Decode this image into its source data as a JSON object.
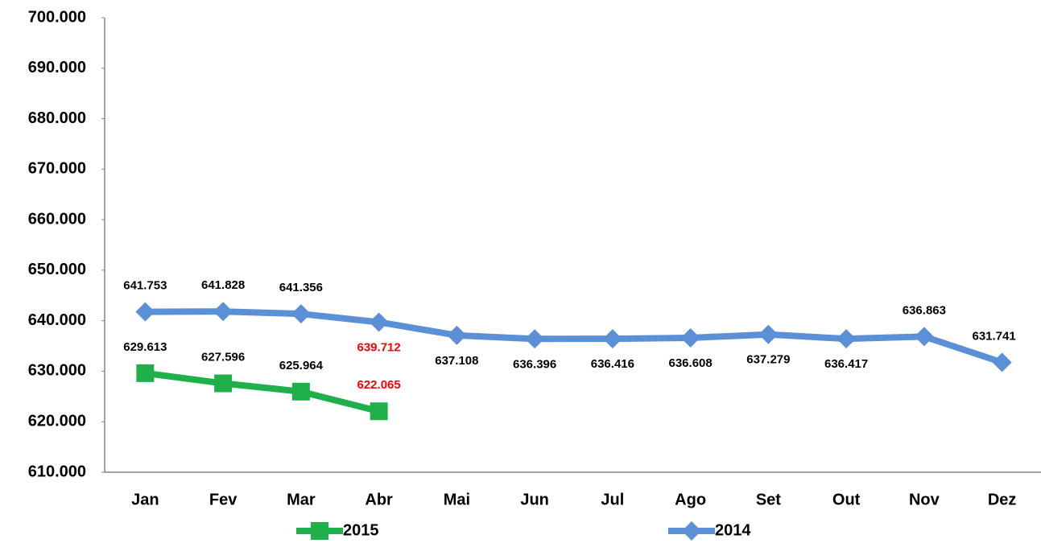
{
  "chart_data": {
    "type": "line",
    "categories": [
      "Jan",
      "Fev",
      "Mar",
      "Abr",
      "Mai",
      "Jun",
      "Jul",
      "Ago",
      "Set",
      "Out",
      "Nov",
      "Dez"
    ],
    "series": [
      {
        "name": "2015",
        "color": "#1faf4b",
        "marker": "square",
        "values": [
          629613,
          627596,
          625964,
          622065,
          null,
          null,
          null,
          null,
          null,
          null,
          null,
          null
        ],
        "value_labels": [
          "629.613",
          "627.596",
          "625.964",
          "622.065",
          null,
          null,
          null,
          null,
          null,
          null,
          null,
          null
        ],
        "value_label_colors": [
          "#000000",
          "#000000",
          "#000000",
          "#ff0000",
          null,
          null,
          null,
          null,
          null,
          null,
          null,
          null
        ]
      },
      {
        "name": "2014",
        "color": "#5b8fd6",
        "marker": "diamond",
        "values": [
          641753,
          641828,
          641356,
          639712,
          637108,
          636396,
          636416,
          636608,
          637279,
          636417,
          636863,
          631741
        ],
        "value_labels": [
          "641.753",
          "641.828",
          "641.356",
          "639.712",
          "637.108",
          "636.396",
          "636.416",
          "636.608",
          "637.279",
          "636.417",
          "636.863",
          "631.741"
        ],
        "value_label_colors": [
          "#000000",
          "#000000",
          "#000000",
          "#ff0000",
          "#000000",
          "#000000",
          "#000000",
          "#000000",
          "#000000",
          "#000000",
          "#000000",
          "#000000"
        ]
      }
    ],
    "ylim": [
      610000,
      700000
    ],
    "yticks": [
      {
        "value": 610000,
        "label": "610.000"
      },
      {
        "value": 620000,
        "label": "620.000"
      },
      {
        "value": 630000,
        "label": "630.000"
      },
      {
        "value": 640000,
        "label": "640.000"
      },
      {
        "value": 650000,
        "label": "650.000"
      },
      {
        "value": 660000,
        "label": "660.000"
      },
      {
        "value": 670000,
        "label": "670.000"
      },
      {
        "value": 680000,
        "label": "680.000"
      },
      {
        "value": 690000,
        "label": "690.000"
      },
      {
        "value": 700000,
        "label": "700.000"
      }
    ],
    "grid": false,
    "legend": "bottom"
  }
}
